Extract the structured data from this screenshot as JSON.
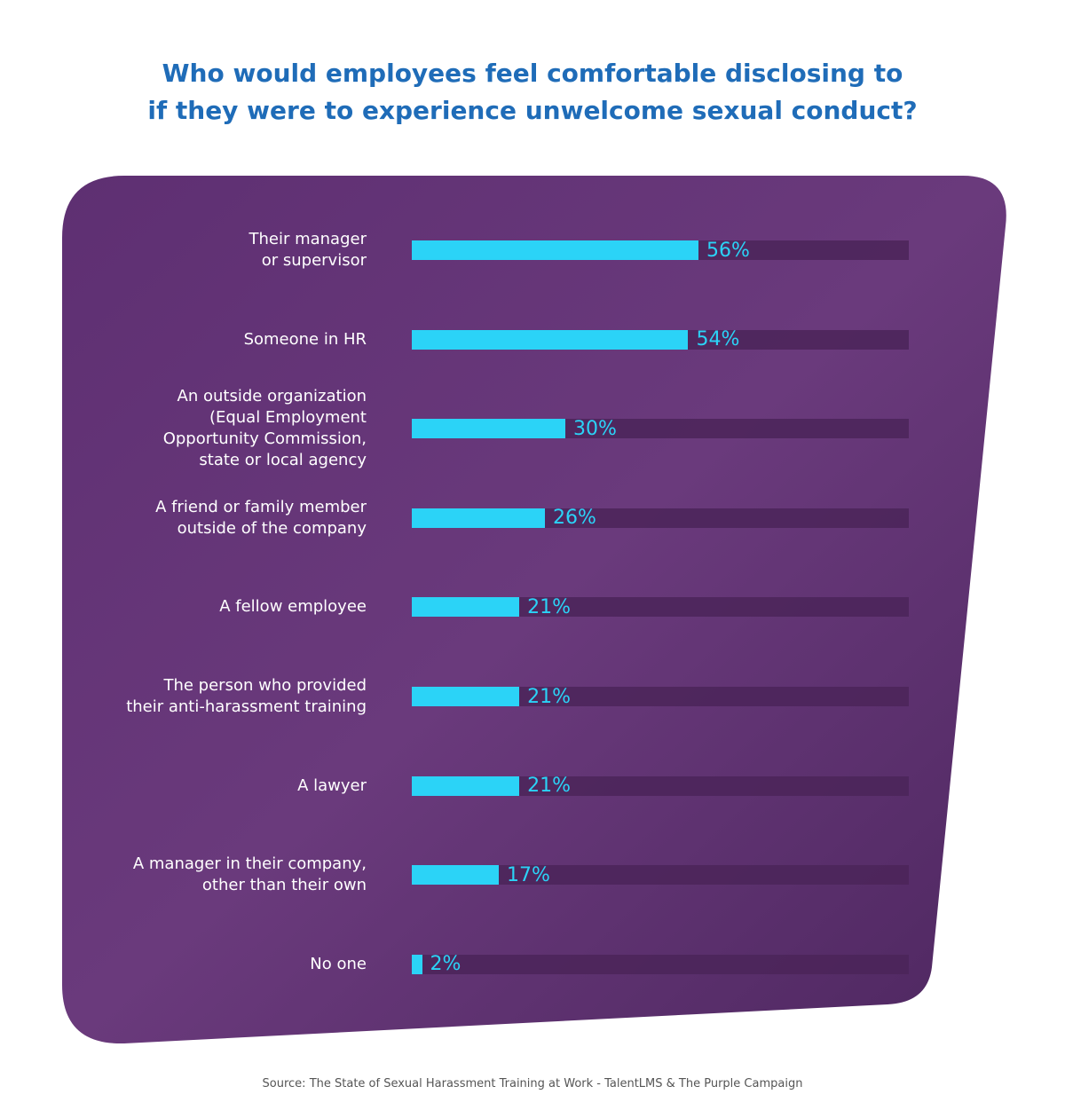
{
  "chart_data": {
    "type": "bar",
    "title": "Who would employees feel comfortable disclosing to\nif they were to experience unwelcome sexual conduct?",
    "categories": [
      "Their manager\nor supervisor",
      "Someone in HR",
      "An outside organization\n(Equal Employment\nOpportunity Commission,\nstate or local agency",
      "A friend or family member\noutside of the company",
      "A fellow employee",
      "The person who provided\ntheir anti-harassment training",
      "A lawyer",
      "A manager in their company,\nother than their own",
      "No one"
    ],
    "values": [
      56,
      54,
      30,
      26,
      21,
      21,
      21,
      17,
      2
    ],
    "value_labels": [
      "56%",
      "54%",
      "30%",
      "26%",
      "21%",
      "21%",
      "21%",
      "17%",
      "2%"
    ],
    "color": "#2bd3f7",
    "source": "Source: The State of Sexual Harassment Training at Work - TalentLMS & The Purple Campaign"
  }
}
